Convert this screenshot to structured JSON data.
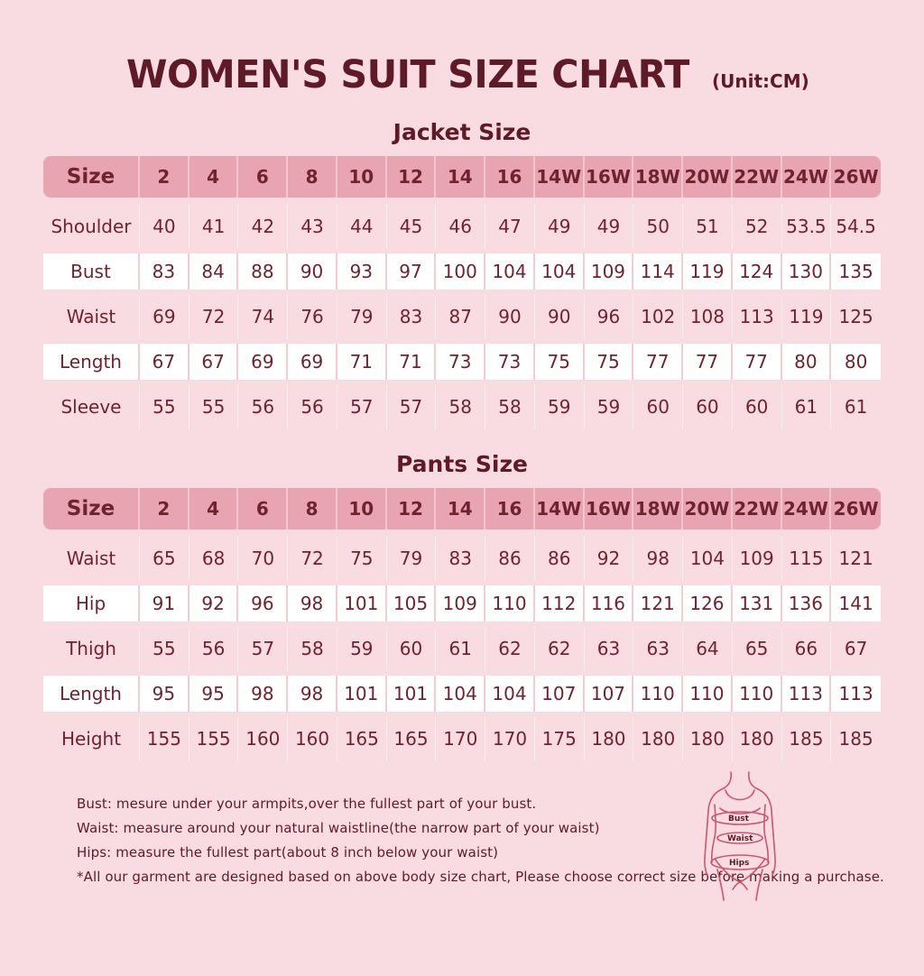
{
  "page": {
    "title": "WOMEN'S SUIT SIZE CHART",
    "unit": "(Unit:CM)"
  },
  "chart_data": [
    {
      "type": "table",
      "title": "Jacket Size",
      "columns": [
        "Size",
        "2",
        "4",
        "6",
        "8",
        "10",
        "12",
        "14",
        "16",
        "14W",
        "16W",
        "18W",
        "20W",
        "22W",
        "24W",
        "26W"
      ],
      "rows": [
        {
          "label": "Shoulder",
          "values": [
            "40",
            "41",
            "42",
            "43",
            "44",
            "45",
            "46",
            "47",
            "49",
            "49",
            "50",
            "51",
            "52",
            "53.5",
            "54.5"
          ]
        },
        {
          "label": "Bust",
          "values": [
            "83",
            "84",
            "88",
            "90",
            "93",
            "97",
            "100",
            "104",
            "104",
            "109",
            "114",
            "119",
            "124",
            "130",
            "135"
          ]
        },
        {
          "label": "Waist",
          "values": [
            "69",
            "72",
            "74",
            "76",
            "79",
            "83",
            "87",
            "90",
            "90",
            "96",
            "102",
            "108",
            "113",
            "119",
            "125"
          ]
        },
        {
          "label": "Length",
          "values": [
            "67",
            "67",
            "69",
            "69",
            "71",
            "71",
            "73",
            "73",
            "75",
            "75",
            "77",
            "77",
            "77",
            "80",
            "80"
          ]
        },
        {
          "label": "Sleeve",
          "values": [
            "55",
            "55",
            "56",
            "56",
            "57",
            "57",
            "58",
            "58",
            "59",
            "59",
            "60",
            "60",
            "60",
            "61",
            "61"
          ]
        }
      ]
    },
    {
      "type": "table",
      "title": "Pants Size",
      "columns": [
        "Size",
        "2",
        "4",
        "6",
        "8",
        "10",
        "12",
        "14",
        "16",
        "14W",
        "16W",
        "18W",
        "20W",
        "22W",
        "24W",
        "26W"
      ],
      "rows": [
        {
          "label": "Waist",
          "values": [
            "65",
            "68",
            "70",
            "72",
            "75",
            "79",
            "83",
            "86",
            "86",
            "92",
            "98",
            "104",
            "109",
            "115",
            "121"
          ]
        },
        {
          "label": "Hip",
          "values": [
            "91",
            "92",
            "96",
            "98",
            "101",
            "105",
            "109",
            "110",
            "112",
            "116",
            "121",
            "126",
            "131",
            "136",
            "141"
          ]
        },
        {
          "label": "Thigh",
          "values": [
            "55",
            "56",
            "57",
            "58",
            "59",
            "60",
            "61",
            "62",
            "62",
            "63",
            "63",
            "64",
            "65",
            "66",
            "67"
          ]
        },
        {
          "label": "Length",
          "values": [
            "95",
            "95",
            "98",
            "98",
            "101",
            "101",
            "104",
            "104",
            "107",
            "107",
            "110",
            "110",
            "110",
            "113",
            "113"
          ]
        },
        {
          "label": "Height",
          "values": [
            "155",
            "155",
            "160",
            "160",
            "165",
            "165",
            "170",
            "170",
            "175",
            "180",
            "180",
            "180",
            "180",
            "185",
            "185"
          ]
        }
      ]
    }
  ],
  "notes": [
    "Bust: mesure under your armpits,over the fullest part of your bust.",
    "Waist: measure around your natural waistline(the narrow part of your waist)",
    "Hips: measure the fullest part(about 8 inch below your waist)",
    "*All our garment are designed based on above body size chart, Please choose correct size before making a purchase."
  ],
  "figure": {
    "labels": {
      "bust": "Bust",
      "waist": "Waist",
      "hips": "Hips"
    }
  },
  "colors": {
    "background": "#f9dce2",
    "header_row": "#e8a4b0",
    "text": "#6f2230",
    "title": "#5e1b27",
    "white_row": "#ffffff",
    "figure_outline": "#cc5570"
  }
}
